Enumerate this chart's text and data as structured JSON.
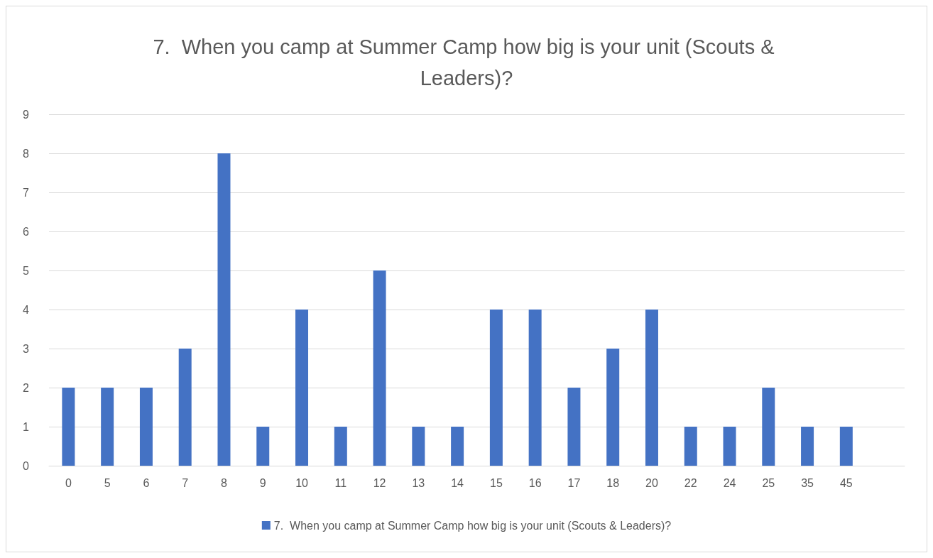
{
  "chart_data": {
    "type": "bar",
    "title": "7.  When you camp at Summer Camp how big is your unit (Scouts & Leaders)?",
    "categories": [
      "0",
      "5",
      "6",
      "7",
      "8",
      "9",
      "10",
      "11",
      "12",
      "13",
      "14",
      "15",
      "16",
      "17",
      "18",
      "20",
      "22",
      "24",
      "25",
      "35",
      "45",
      null
    ],
    "series": [
      {
        "name": "7.  When you camp at Summer Camp how big is your unit (Scouts & Leaders)?",
        "color": "#4472c4",
        "values": [
          2,
          2,
          2,
          3,
          8,
          1,
          4,
          1,
          5,
          1,
          1,
          4,
          4,
          2,
          3,
          4,
          1,
          1,
          2,
          1,
          1,
          null
        ]
      }
    ],
    "ylim": [
      0,
      9
    ],
    "yticks": [
      0,
      1,
      2,
      3,
      4,
      5,
      6,
      7,
      8,
      9
    ],
    "grid": "y",
    "legend": "bottom"
  }
}
